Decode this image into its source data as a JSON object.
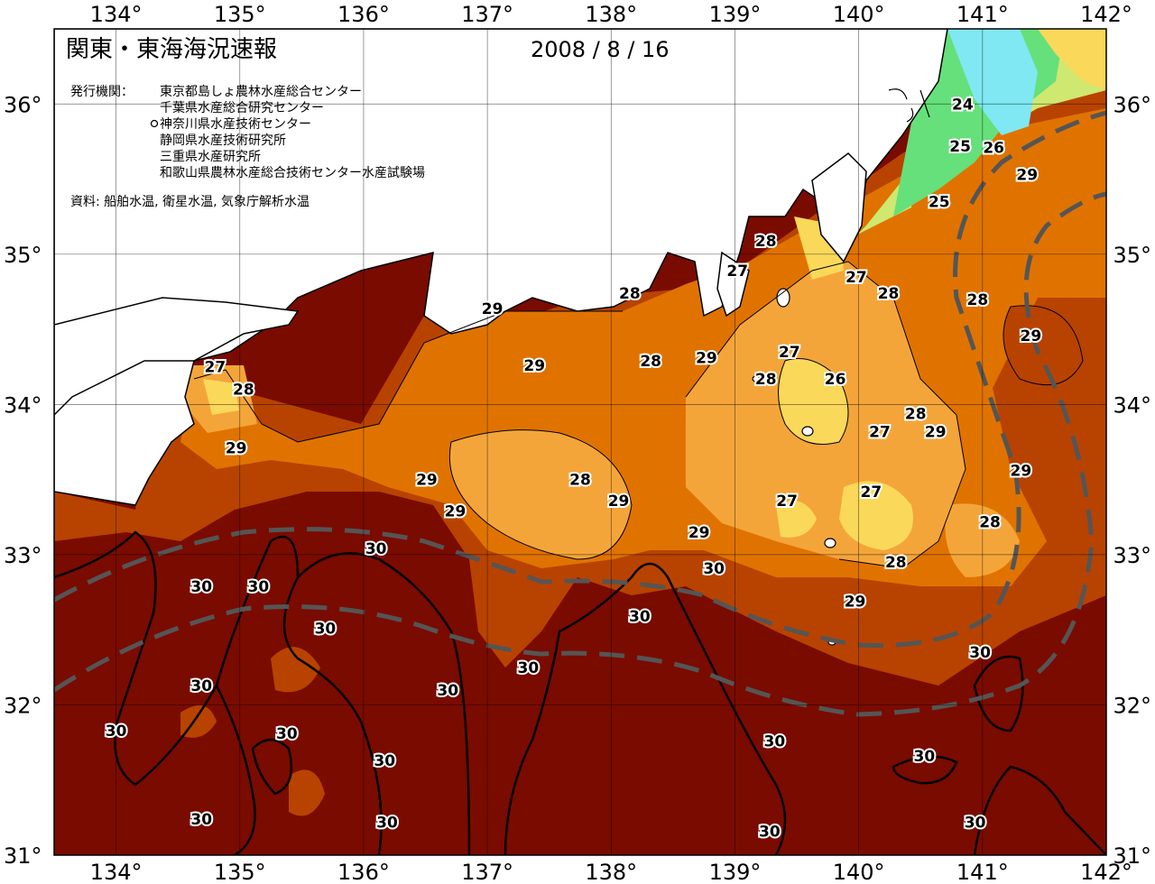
{
  "header": {
    "title": "関東・東海海況速報",
    "date": "2008 / 8 / 16"
  },
  "agencies": {
    "label": "発行機関：",
    "items": [
      "東京都島しょ農林水産総合センター",
      "千葉県水産総合研究センター",
      "神奈川県水産技術センター",
      "静岡県水産技術研究所",
      "三重県水産研究所",
      "和歌山県農林水産総合技術センター水産試験場"
    ],
    "source": "資料: 船舶水温, 衛星水温, 気象庁解析水温"
  },
  "axes": {
    "lon_labels": [
      "134°",
      "135°",
      "136°",
      "137°",
      "138°",
      "139°",
      "140°",
      "141°",
      "142°"
    ],
    "lat_labels": [
      "36°",
      "35°",
      "34°",
      "33°",
      "32°",
      "31°"
    ]
  },
  "temperature_labels": [
    {
      "text": "24",
      "lon": 140.84,
      "lat": 36.0
    },
    {
      "text": "25",
      "lon": 140.82,
      "lat": 35.72
    },
    {
      "text": "26",
      "lon": 141.09,
      "lat": 35.71
    },
    {
      "text": "29",
      "lon": 141.36,
      "lat": 35.53
    },
    {
      "text": "25",
      "lon": 140.65,
      "lat": 35.35
    },
    {
      "text": "28",
      "lon": 139.25,
      "lat": 35.09
    },
    {
      "text": "27",
      "lon": 139.02,
      "lat": 34.89
    },
    {
      "text": "27",
      "lon": 139.98,
      "lat": 34.85
    },
    {
      "text": "28",
      "lon": 140.24,
      "lat": 34.74
    },
    {
      "text": "28",
      "lon": 140.96,
      "lat": 34.7
    },
    {
      "text": "28",
      "lon": 138.15,
      "lat": 34.74
    },
    {
      "text": "29",
      "lon": 137.04,
      "lat": 34.64
    },
    {
      "text": "29",
      "lon": 141.39,
      "lat": 34.46
    },
    {
      "text": "27",
      "lon": 139.44,
      "lat": 34.35
    },
    {
      "text": "28",
      "lon": 138.32,
      "lat": 34.29
    },
    {
      "text": "29",
      "lon": 138.77,
      "lat": 34.31
    },
    {
      "text": "29",
      "lon": 137.38,
      "lat": 34.26
    },
    {
      "text": "27",
      "lon": 134.8,
      "lat": 34.25
    },
    {
      "text": "28",
      "lon": 139.25,
      "lat": 34.17
    },
    {
      "text": "26",
      "lon": 139.81,
      "lat": 34.17
    },
    {
      "text": "28",
      "lon": 135.03,
      "lat": 34.1
    },
    {
      "text": "28",
      "lon": 140.46,
      "lat": 33.94
    },
    {
      "text": "27",
      "lon": 140.17,
      "lat": 33.82
    },
    {
      "text": "29",
      "lon": 140.62,
      "lat": 33.82
    },
    {
      "text": "29",
      "lon": 134.97,
      "lat": 33.71
    },
    {
      "text": "29",
      "lon": 141.31,
      "lat": 33.56
    },
    {
      "text": "29",
      "lon": 136.51,
      "lat": 33.5
    },
    {
      "text": "28",
      "lon": 137.75,
      "lat": 33.5
    },
    {
      "text": "27",
      "lon": 140.1,
      "lat": 33.42
    },
    {
      "text": "29",
      "lon": 138.06,
      "lat": 33.36
    },
    {
      "text": "27",
      "lon": 139.42,
      "lat": 33.36
    },
    {
      "text": "29",
      "lon": 136.74,
      "lat": 33.29
    },
    {
      "text": "28",
      "lon": 141.06,
      "lat": 33.22
    },
    {
      "text": "29",
      "lon": 138.71,
      "lat": 33.15
    },
    {
      "text": "30",
      "lon": 136.1,
      "lat": 33.04
    },
    {
      "text": "28",
      "lon": 140.3,
      "lat": 32.95
    },
    {
      "text": "30",
      "lon": 138.83,
      "lat": 32.91
    },
    {
      "text": "30",
      "lon": 134.69,
      "lat": 32.79
    },
    {
      "text": "30",
      "lon": 135.15,
      "lat": 32.79
    },
    {
      "text": "29",
      "lon": 139.97,
      "lat": 32.69
    },
    {
      "text": "30",
      "lon": 138.23,
      "lat": 32.59
    },
    {
      "text": "30",
      "lon": 135.69,
      "lat": 32.51
    },
    {
      "text": "30",
      "lon": 140.98,
      "lat": 32.35
    },
    {
      "text": "30",
      "lon": 137.33,
      "lat": 32.25
    },
    {
      "text": "30",
      "lon": 134.69,
      "lat": 32.13
    },
    {
      "text": "30",
      "lon": 136.68,
      "lat": 32.1
    },
    {
      "text": "30",
      "lon": 134.0,
      "lat": 31.83
    },
    {
      "text": "30",
      "lon": 135.38,
      "lat": 31.81
    },
    {
      "text": "30",
      "lon": 139.32,
      "lat": 31.76
    },
    {
      "text": "30",
      "lon": 136.17,
      "lat": 31.63
    },
    {
      "text": "30",
      "lon": 140.53,
      "lat": 31.66
    },
    {
      "text": "30",
      "lon": 134.69,
      "lat": 31.24
    },
    {
      "text": "30",
      "lon": 136.19,
      "lat": 31.22
    },
    {
      "text": "30",
      "lon": 140.94,
      "lat": 31.22
    },
    {
      "text": "30",
      "lon": 139.28,
      "lat": 31.16
    }
  ],
  "colors": {
    "temp_30": "#7a0b00",
    "temp_29": "#b84300",
    "temp_28": "#e07300",
    "temp_27": "#f4a53a",
    "temp_26": "#fad85a",
    "temp_25": "#cfe870",
    "temp_24_green": "#66e07a",
    "temp_23_cyan": "#7fe8f2"
  }
}
